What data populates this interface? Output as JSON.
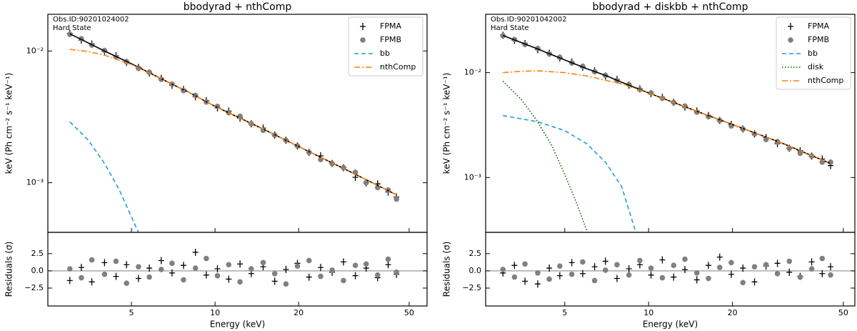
{
  "chart_data": [
    {
      "type": "scatter",
      "title": "bbodyrad + nthComp",
      "annotations": [
        "Obs.ID:90201024002",
        "Hard State"
      ],
      "xlabel": "Energy (keV)",
      "ylabel": "keV (Ph cm⁻² s⁻¹ keV⁻¹)",
      "xscale": "log",
      "yscale": "log",
      "xlim": [
        2.5,
        58
      ],
      "ylim": [
        0.00042,
        0.019
      ],
      "xticks": [
        5,
        10,
        20,
        50
      ],
      "yticks": [
        {
          "value": 0.01,
          "label": "10⁻²"
        },
        {
          "value": 0.001,
          "label": "10⁻³"
        }
      ],
      "x": [
        3.0,
        3.3,
        3.6,
        4.0,
        4.4,
        4.8,
        5.3,
        5.8,
        6.4,
        7.0,
        7.7,
        8.5,
        9.3,
        10.2,
        11.2,
        12.3,
        13.5,
        14.9,
        16.4,
        18,
        19.8,
        21.8,
        24,
        26.4,
        29,
        32,
        35,
        38.5,
        42,
        45
      ],
      "series": [
        {
          "name": "FPMA",
          "marker": "plus",
          "color": "#000000",
          "values": [
            0.0136,
            0.0121,
            0.0113,
            0.0099,
            0.0092,
            0.0082,
            0.0075,
            0.0068,
            0.0062,
            0.0055,
            0.0051,
            0.0045,
            0.0042,
            0.0037,
            0.0035,
            0.0031,
            0.0028,
            0.0026,
            0.0023,
            0.0021,
            0.0019,
            0.0017,
            0.0016,
            0.0014,
            0.0013,
            0.0011,
            0.001,
            0.00098,
            0.00085,
            0.00078
          ]
        },
        {
          "name": "FPMB",
          "marker": "circle",
          "color": "#808080",
          "values": [
            0.0134,
            0.0124,
            0.0111,
            0.0101,
            0.009,
            0.0083,
            0.0074,
            0.0069,
            0.0061,
            0.0056,
            0.005,
            0.0046,
            0.0041,
            0.0038,
            0.0034,
            0.0032,
            0.0028,
            0.0025,
            0.0023,
            0.0021,
            0.0019,
            0.0017,
            0.0015,
            0.0014,
            0.0013,
            0.0012,
            0.001,
            0.00092,
            0.00088,
            0.00075
          ]
        }
      ],
      "lines": [
        {
          "color": "#000000",
          "style": "solid",
          "x": [
            3,
            4,
            5,
            6,
            7,
            8,
            10,
            15,
            20,
            30,
            45
          ],
          "values": [
            0.0135,
            0.01,
            0.008,
            0.0066,
            0.0056,
            0.0049,
            0.0038,
            0.00254,
            0.00188,
            0.00124,
            0.00081
          ]
        },
        {
          "name": "bb",
          "color": "#1f9fd8",
          "style": "dashed",
          "x": [
            3,
            3.5,
            4,
            4.5,
            5,
            5.3
          ],
          "values": [
            0.0029,
            0.0021,
            0.0014,
            0.0009,
            0.00055,
            0.00042
          ]
        },
        {
          "name": "nthComp",
          "color": "#ff7f0e",
          "style": "dashdot",
          "x": [
            3,
            3.5,
            4,
            5,
            6,
            7,
            8,
            10,
            15,
            20,
            30,
            45
          ],
          "values": [
            0.0103,
            0.0099,
            0.0093,
            0.0079,
            0.0066,
            0.0056,
            0.0049,
            0.0038,
            0.00254,
            0.00188,
            0.00124,
            0.00081
          ]
        }
      ],
      "residuals": {
        "ylabel": "Residuals (σ)",
        "ylim": [
          -5.1,
          5.6
        ],
        "yticks": [
          2.5,
          {
            "value": 0,
            "label": "0.0"
          },
          {
            "value": -2.5,
            "label": "−2.5"
          }
        ],
        "series": [
          {
            "marker": "plus",
            "color": "#000000",
            "values": [
              -1.4,
              0.5,
              -1.6,
              1.2,
              -0.8,
              0.9,
              -1.1,
              0.4,
              1.5,
              -0.3,
              0.8,
              2.7,
              -0.6,
              0.3,
              -1.2,
              1.0,
              -0.4,
              0.6,
              -1.5,
              0.2,
              1.1,
              -0.9,
              0.5,
              -0.2,
              1.3,
              -0.7,
              0.4,
              -1.0,
              0.9,
              -0.5
            ]
          },
          {
            "marker": "circle",
            "color": "#808080",
            "values": [
              0.3,
              -1.0,
              1.6,
              -0.5,
              1.4,
              -1.8,
              0.6,
              -0.9,
              0.2,
              1.1,
              -1.3,
              0.4,
              1.8,
              -0.7,
              0.9,
              -1.6,
              0.3,
              1.2,
              -0.4,
              -1.9,
              0.7,
              1.5,
              -0.8,
              0.1,
              -1.4,
              0.8,
              1.0,
              -0.6,
              1.7,
              -0.2
            ]
          }
        ]
      }
    },
    {
      "type": "scatter",
      "title": "bbodyrad + diskbb + nthComp",
      "annotations": [
        "Obs.ID:90201042002",
        "Hard State"
      ],
      "xlabel": "Energy (keV)",
      "ylabel": "keV (Ph cm⁻² s⁻¹ keV⁻¹)",
      "xscale": "log",
      "yscale": "log",
      "xlim": [
        2.6,
        55
      ],
      "ylim": [
        0.0003,
        0.036
      ],
      "xticks": [
        5,
        10,
        20,
        50
      ],
      "yticks": [
        {
          "value": 0.01,
          "label": "10⁻²"
        },
        {
          "value": 0.001,
          "label": "10⁻³"
        }
      ],
      "x": [
        3.0,
        3.3,
        3.6,
        4.0,
        4.4,
        4.8,
        5.3,
        5.8,
        6.4,
        7.0,
        7.7,
        8.5,
        9.3,
        10.2,
        11.2,
        12.3,
        13.5,
        14.9,
        16.4,
        18,
        19.8,
        21.8,
        24,
        26.4,
        29,
        32,
        35,
        38.5,
        42,
        45
      ],
      "series": [
        {
          "name": "FPMA",
          "marker": "plus",
          "color": "#000000",
          "values": [
            0.0227,
            0.0203,
            0.0189,
            0.0166,
            0.0153,
            0.0138,
            0.0126,
            0.0113,
            0.0104,
            0.0093,
            0.0086,
            0.0076,
            0.007,
            0.0063,
            0.0058,
            0.0052,
            0.0047,
            0.0043,
            0.0039,
            0.0035,
            0.0032,
            0.0029,
            0.0026,
            0.0024,
            0.0021,
            0.0019,
            0.0018,
            0.0016,
            0.0015,
            0.0013
          ]
        },
        {
          "name": "FPMB",
          "marker": "circle",
          "color": "#808080",
          "values": [
            0.0225,
            0.0207,
            0.0186,
            0.017,
            0.0151,
            0.014,
            0.0124,
            0.0115,
            0.0102,
            0.0094,
            0.0084,
            0.0077,
            0.0069,
            0.0064,
            0.0057,
            0.0052,
            0.0048,
            0.0042,
            0.0038,
            0.0035,
            0.0031,
            0.0029,
            0.0026,
            0.0023,
            0.0022,
            0.0019,
            0.0017,
            0.0016,
            0.0014,
            0.0014
          ]
        }
      ],
      "lines": [
        {
          "color": "#000000",
          "style": "solid",
          "x": [
            3,
            4,
            5,
            6,
            7,
            8,
            10,
            15,
            20,
            30,
            45
          ],
          "values": [
            0.0226,
            0.0168,
            0.0132,
            0.0109,
            0.0094,
            0.0081,
            0.0064,
            0.00425,
            0.0032,
            0.00214,
            0.00136
          ]
        },
        {
          "name": "bb",
          "color": "#1f9fd8",
          "style": "dashed",
          "x": [
            3,
            4,
            5,
            6,
            7,
            8,
            9
          ],
          "values": [
            0.0039,
            0.0034,
            0.0028,
            0.0021,
            0.0014,
            0.00082,
            0.0003
          ]
        },
        {
          "name": "disk",
          "color": "#006400",
          "style": "dotted",
          "x": [
            3,
            3.5,
            4,
            4.5,
            5,
            5.5,
            6
          ],
          "values": [
            0.0083,
            0.0055,
            0.0034,
            0.002,
            0.00107,
            0.00058,
            0.00031
          ]
        },
        {
          "name": "nthComp",
          "color": "#ff7f0e",
          "style": "dashdot",
          "x": [
            3,
            3.5,
            4,
            5,
            6,
            8,
            10,
            15,
            20,
            30,
            45
          ],
          "values": [
            0.01,
            0.0103,
            0.0104,
            0.01,
            0.0093,
            0.0078,
            0.0064,
            0.00425,
            0.0032,
            0.00214,
            0.00136
          ]
        }
      ],
      "residuals": {
        "ylabel": "Residuals (σ)",
        "ylim": [
          -5.1,
          5.6
        ],
        "yticks": [
          2.5,
          {
            "value": 0,
            "label": "0.0"
          },
          {
            "value": -2.5,
            "label": "−2.5"
          }
        ],
        "series": [
          {
            "marker": "plus",
            "color": "#000000",
            "values": [
              -0.3,
              0.8,
              -1.5,
              -1.9,
              0.4,
              -0.7,
              1.2,
              -0.4,
              0.6,
              1.4,
              -1.1,
              0.3,
              0.9,
              -0.6,
              1.6,
              -0.9,
              0.2,
              -1.3,
              0.8,
              2.0,
              -0.5,
              0.4,
              -1.6,
              0.7,
              1.1,
              -0.2,
              -0.8,
              1.3,
              -0.4,
              0.6
            ]
          },
          {
            "marker": "circle",
            "color": "#808080",
            "values": [
              0.2,
              -0.9,
              1.0,
              -0.3,
              -1.2,
              0.7,
              -0.5,
              1.3,
              -1.4,
              0.1,
              0.9,
              -0.6,
              1.5,
              0.4,
              -1.0,
              0.8,
              1.7,
              -0.3,
              -1.1,
              0.5,
              1.2,
              -1.7,
              0.6,
              0.9,
              -0.4,
              1.4,
              -0.9,
              0.3,
              1.8,
              -0.6
            ]
          }
        ]
      }
    }
  ]
}
